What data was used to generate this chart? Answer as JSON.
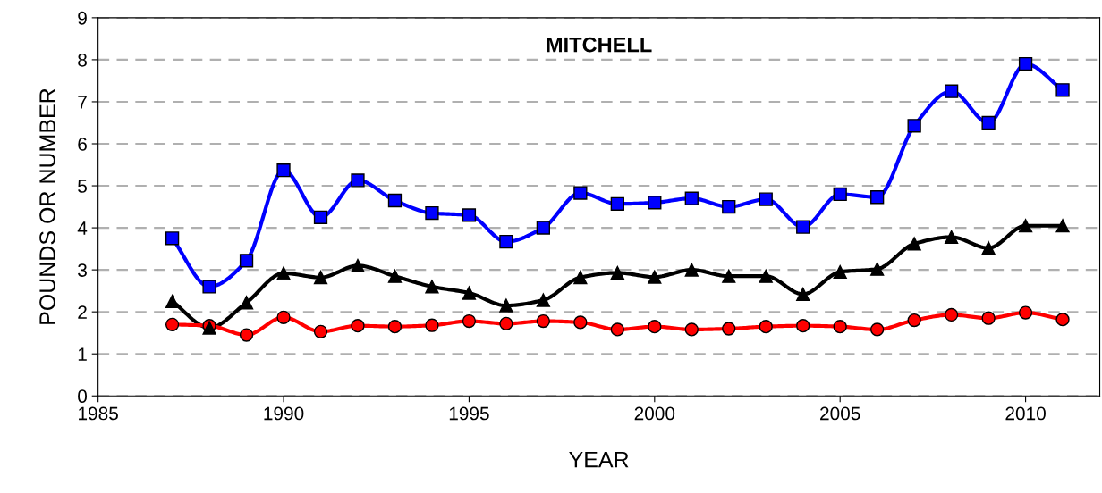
{
  "chart_data": {
    "type": "line",
    "title": "MITCHELL",
    "xlabel": "YEAR",
    "ylabel": "POUNDS OR NUMBER",
    "x": [
      1987,
      1988,
      1989,
      1990,
      1991,
      1992,
      1993,
      1994,
      1995,
      1996,
      1997,
      1998,
      1999,
      2000,
      2001,
      2002,
      2003,
      2004,
      2005,
      2006,
      2007,
      2008,
      2009,
      2010,
      2011
    ],
    "series": [
      {
        "color": "#0000ff",
        "marker": "square",
        "values": [
          3.75,
          2.6,
          3.22,
          5.37,
          4.25,
          5.13,
          4.65,
          4.35,
          4.3,
          3.67,
          4.0,
          4.83,
          4.57,
          4.6,
          4.7,
          4.5,
          4.68,
          4.02,
          4.8,
          4.73,
          6.43,
          7.25,
          6.5,
          7.9,
          7.28
        ]
      },
      {
        "color": "#000000",
        "marker": "triangle",
        "values": [
          2.25,
          1.62,
          2.22,
          2.92,
          2.82,
          3.1,
          2.85,
          2.6,
          2.45,
          2.15,
          2.28,
          2.82,
          2.93,
          2.83,
          3.0,
          2.85,
          2.85,
          2.42,
          2.95,
          3.02,
          3.62,
          3.78,
          3.52,
          4.05,
          4.05
        ]
      },
      {
        "color": "#ff0000",
        "marker": "circle",
        "values": [
          1.7,
          1.67,
          1.45,
          1.87,
          1.53,
          1.67,
          1.65,
          1.68,
          1.78,
          1.72,
          1.78,
          1.75,
          1.58,
          1.65,
          1.58,
          1.6,
          1.65,
          1.67,
          1.65,
          1.58,
          1.8,
          1.93,
          1.85,
          1.98,
          1.82
        ]
      }
    ],
    "xlim": [
      1985,
      2012
    ],
    "xticks": [
      1985,
      1990,
      1995,
      2000,
      2005,
      2010
    ],
    "ylim": [
      0,
      9
    ],
    "yticks": [
      0,
      1,
      2,
      3,
      4,
      5,
      6,
      7,
      8,
      9
    ],
    "grid": "y",
    "legend": false,
    "line_style": "solid"
  }
}
